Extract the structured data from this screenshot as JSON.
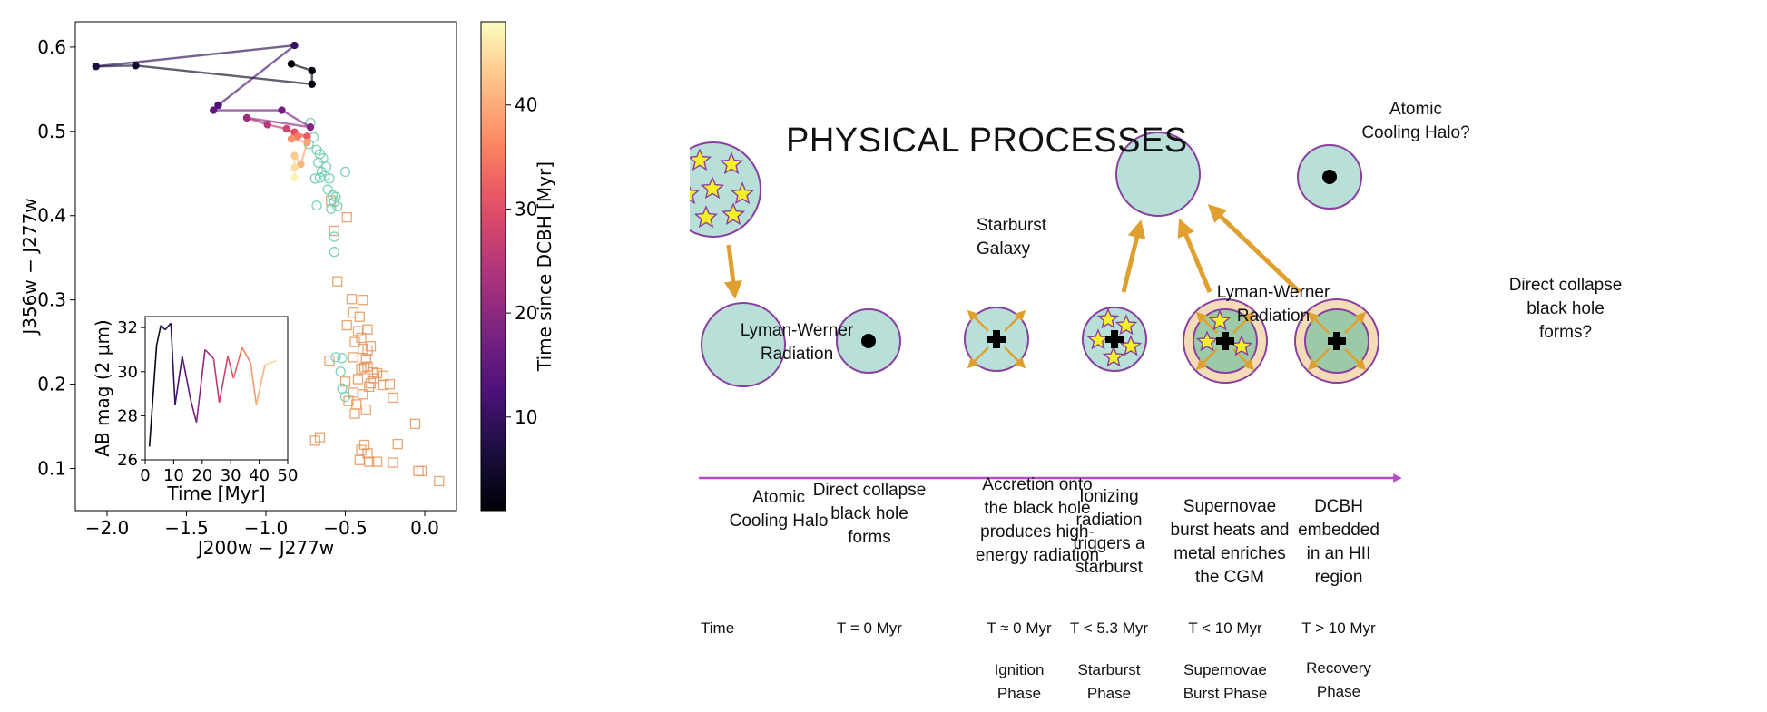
{
  "chart_data": [
    {
      "type": "scatter",
      "xlabel": "J200w − J277w",
      "ylabel": "J356w − J277w",
      "xlim": [
        -2.2,
        0.2
      ],
      "ylim": [
        0.05,
        0.63
      ],
      "xticks": [
        "−2.0",
        "−1.5",
        "−1.0",
        "−0.5",
        "0.0"
      ],
      "xtick_values": [
        -2.0,
        -1.5,
        -1.0,
        -0.5,
        0.0
      ],
      "yticks": [
        "0.1",
        "0.2",
        "0.3",
        "0.4",
        "0.5",
        "0.6"
      ],
      "ytick_values": [
        0.1,
        0.2,
        0.3,
        0.4,
        0.5,
        0.6
      ],
      "colorbar": {
        "label": "Time since DCBH [Myr]",
        "ticks": [
          "10",
          "20",
          "30",
          "40"
        ],
        "tick_values": [
          10,
          20,
          30,
          40
        ],
        "range": [
          1,
          48
        ]
      },
      "track": [
        {
          "x": -0.84,
          "y": 0.58,
          "t": 1
        },
        {
          "x": -0.71,
          "y": 0.572,
          "t": 2
        },
        {
          "x": -0.71,
          "y": 0.556,
          "t": 3
        },
        {
          "x": -1.82,
          "y": 0.578,
          "t": 5
        },
        {
          "x": -2.07,
          "y": 0.577,
          "t": 7
        },
        {
          "x": -0.82,
          "y": 0.602,
          "t": 10
        },
        {
          "x": -1.3,
          "y": 0.531,
          "t": 13
        },
        {
          "x": -1.33,
          "y": 0.525,
          "t": 15
        },
        {
          "x": -0.9,
          "y": 0.525,
          "t": 17
        },
        {
          "x": -0.72,
          "y": 0.505,
          "t": 19
        },
        {
          "x": -1.12,
          "y": 0.516,
          "t": 22
        },
        {
          "x": -0.99,
          "y": 0.508,
          "t": 25
        },
        {
          "x": -0.87,
          "y": 0.503,
          "t": 28
        },
        {
          "x": -0.82,
          "y": 0.499,
          "t": 30
        },
        {
          "x": -0.74,
          "y": 0.494,
          "t": 32
        },
        {
          "x": -0.8,
          "y": 0.494,
          "t": 35
        },
        {
          "x": -0.84,
          "y": 0.491,
          "t": 37
        },
        {
          "x": -0.74,
          "y": 0.487,
          "t": 39
        },
        {
          "x": -0.78,
          "y": 0.461,
          "t": 41
        },
        {
          "x": -0.82,
          "y": 0.471,
          "t": 43
        },
        {
          "x": -0.82,
          "y": 0.457,
          "t": 45
        },
        {
          "x": -0.82,
          "y": 0.445,
          "t": 47
        }
      ],
      "open_circles": [
        [
          -0.7,
          0.493
        ],
        [
          -0.73,
          0.485
        ],
        [
          -0.68,
          0.478
        ],
        [
          -0.66,
          0.473
        ],
        [
          -0.64,
          0.468
        ],
        [
          -0.67,
          0.463
        ],
        [
          -0.62,
          0.458
        ],
        [
          -0.65,
          0.452
        ],
        [
          -0.63,
          0.447
        ],
        [
          -0.6,
          0.444
        ],
        [
          -0.66,
          0.445
        ],
        [
          -0.69,
          0.444
        ],
        [
          -0.61,
          0.431
        ],
        [
          -0.58,
          0.424
        ],
        [
          -0.57,
          0.416
        ],
        [
          -0.59,
          0.408
        ],
        [
          -0.55,
          0.411
        ],
        [
          -0.56,
          0.422
        ],
        [
          -0.68,
          0.412
        ],
        [
          -0.5,
          0.452
        ],
        [
          -0.57,
          0.375
        ],
        [
          -0.57,
          0.357
        ],
        [
          -0.72,
          0.51
        ],
        [
          -0.56,
          0.232
        ],
        [
          -0.52,
          0.231
        ],
        [
          -0.53,
          0.215
        ],
        [
          -0.52,
          0.195
        ],
        [
          -0.5,
          0.185
        ]
      ],
      "open_squares": [
        [
          -0.49,
          0.398
        ],
        [
          -0.57,
          0.382
        ],
        [
          -0.55,
          0.322
        ],
        [
          -0.59,
          0.418
        ],
        [
          -0.46,
          0.301
        ],
        [
          -0.45,
          0.285
        ],
        [
          -0.49,
          0.27
        ],
        [
          -0.39,
          0.3
        ],
        [
          -0.41,
          0.28
        ],
        [
          -0.42,
          0.263
        ],
        [
          -0.4,
          0.255
        ],
        [
          -0.36,
          0.265
        ],
        [
          -0.44,
          0.25
        ],
        [
          -0.39,
          0.242
        ],
        [
          -0.34,
          0.245
        ],
        [
          -0.37,
          0.23
        ],
        [
          -0.36,
          0.221
        ],
        [
          -0.38,
          0.22
        ],
        [
          -0.4,
          0.218
        ],
        [
          -0.33,
          0.214
        ],
        [
          -0.3,
          0.213
        ],
        [
          -0.32,
          0.207
        ],
        [
          -0.34,
          0.201
        ],
        [
          -0.35,
          0.197
        ],
        [
          -0.42,
          0.206
        ],
        [
          -0.45,
          0.19
        ],
        [
          -0.39,
          0.188
        ],
        [
          -0.43,
          0.176
        ],
        [
          -0.48,
          0.18
        ],
        [
          -0.44,
          0.165
        ],
        [
          -0.37,
          0.17
        ],
        [
          -0.5,
          0.203
        ],
        [
          -0.26,
          0.21
        ],
        [
          -0.26,
          0.199
        ],
        [
          -0.22,
          0.2
        ],
        [
          -0.2,
          0.184
        ],
        [
          -0.38,
          0.128
        ],
        [
          -0.4,
          0.122
        ],
        [
          -0.36,
          0.118
        ],
        [
          -0.41,
          0.11
        ],
        [
          -0.35,
          0.108
        ],
        [
          -0.3,
          0.108
        ],
        [
          -0.2,
          0.107
        ],
        [
          -0.17,
          0.129
        ],
        [
          -0.06,
          0.153
        ],
        [
          -0.04,
          0.097
        ],
        [
          -0.02,
          0.097
        ],
        [
          0.09,
          0.085
        ],
        [
          -0.66,
          0.137
        ],
        [
          -0.69,
          0.133
        ],
        [
          -0.45,
          0.232
        ],
        [
          -0.36,
          0.24
        ],
        [
          -0.6,
          0.228
        ]
      ]
    },
    {
      "type": "line",
      "xlabel": "Time [Myr]",
      "ylabel": "AB mag (2 μm)",
      "xlim": [
        0,
        50
      ],
      "ylim": [
        26,
        32.5
      ],
      "xticks": [
        "0",
        "10",
        "20",
        "30",
        "40",
        "50"
      ],
      "xtick_values": [
        0,
        10,
        20,
        30,
        40,
        50
      ],
      "yticks": [
        "26",
        "28",
        "30",
        "32"
      ],
      "ytick_values": [
        26,
        28,
        30,
        32
      ],
      "x": [
        1.5,
        4,
        5.5,
        7,
        9,
        10.5,
        13,
        16,
        18,
        21,
        24,
        26,
        29,
        31,
        34,
        37,
        39,
        42,
        46
      ],
      "y": [
        26.6,
        31.2,
        32.1,
        31.9,
        32.2,
        28.5,
        30.7,
        28.7,
        27.7,
        31.0,
        30.6,
        28.6,
        30.7,
        29.7,
        31.1,
        30.4,
        28.5,
        30.3,
        30.5
      ]
    }
  ],
  "diagram": {
    "title": "PHYSICAL PROCESSES",
    "starburst_label": "Starburst\nGalaxy",
    "lw_left": "Lyman-Werner\nRadiation",
    "lw_right": "Lyman-Werner\nRadiation",
    "top_halo": "Atomic\nCooling Halo?",
    "top_bh": "Direct collapse\nblack hole\nforms?",
    "stages": [
      {
        "caption": "Atomic\nCooling Halo",
        "time": "Time",
        "phase": ""
      },
      {
        "caption": "Direct collapse\nblack hole\nforms",
        "time": "T = 0 Myr",
        "phase": ""
      },
      {
        "caption": "Accretion onto\nthe black hole\nproduces high-\nenergy radiation",
        "time": "T  ≈ 0 Myr",
        "phase": "Ignition\nPhase"
      },
      {
        "caption": "Ionizing\nradiation\ntriggers a\nstarburst",
        "time": "T  < 5.3 Myr",
        "phase": "Starburst\nPhase"
      },
      {
        "caption": "Supernovae\nburst heats and\nmetal enriches\nthe CGM",
        "time": "T  < 10 Myr",
        "phase": "Supernovae\nBurst Phase"
      },
      {
        "caption": "DCBH\nembedded\nin an HII\nregion",
        "time": "T  > 10 Myr",
        "phase": "Recovery\nPhase"
      }
    ],
    "colors": {
      "halo_fill": "#b8e0d8",
      "halo_stroke": "#8a3fa0",
      "arrow": "#e0a030",
      "star": "#f5ef2a",
      "timeline": "#b44cc8",
      "shell": "#f5dcb8"
    }
  }
}
